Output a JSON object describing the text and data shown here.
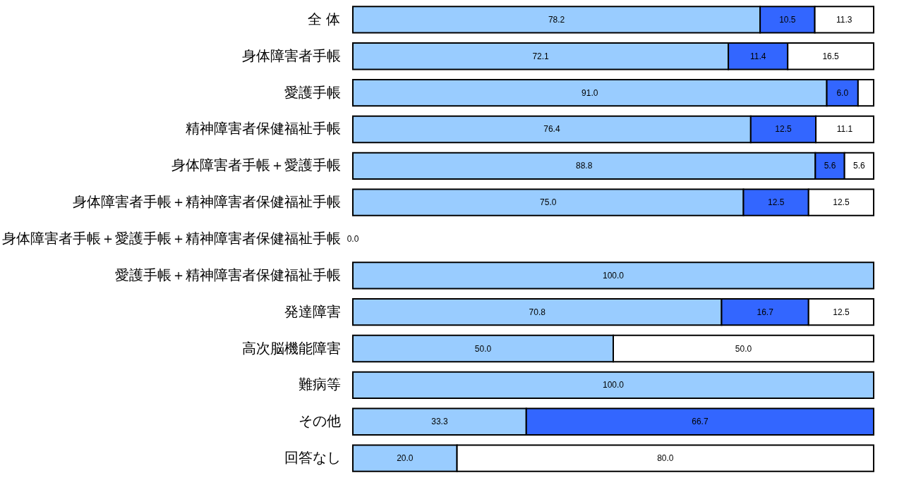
{
  "chart_data": {
    "type": "bar",
    "orientation": "horizontal",
    "stacked": true,
    "xlim": [
      0,
      100
    ],
    "tick_labels": "y",
    "categories": [
      "全 体",
      "身体障害者手帳",
      "愛護手帳",
      "精神障害者保健福祉手帳",
      "身体障害者手帳＋愛護手帳",
      "身体障害者手帳＋精神障害者保健福祉手帳",
      "身体障害者手帳＋愛護手帳＋精神障害者保健福祉手帳",
      "愛護手帳＋精神障害者保健福祉手帳",
      "発達障害",
      "高次脳機能障害",
      "難病等",
      "その他",
      "回答なし"
    ],
    "series": [
      {
        "color": "#99ccff",
        "values": [
          78.2,
          72.1,
          91.0,
          76.4,
          88.8,
          75.0,
          0,
          100.0,
          70.8,
          50.0,
          100.0,
          33.3,
          20.0
        ],
        "value_labels": [
          "78.2",
          "72.1",
          "91.0",
          "76.4",
          "88.8",
          "75.0",
          "0.0",
          "100.0",
          "70.8",
          "50.0",
          "100.0",
          "33.3",
          "20.0"
        ]
      },
      {
        "color": "#3366ff",
        "values": [
          10.5,
          11.4,
          6.0,
          12.5,
          5.6,
          12.5,
          null,
          0,
          16.7,
          0,
          0,
          66.7,
          0
        ],
        "value_labels": [
          "10.5",
          "11.4",
          "6.0",
          "12.5",
          "5.6",
          "12.5",
          null,
          null,
          "16.7",
          null,
          null,
          "66.7",
          null
        ]
      },
      {
        "color": "#ffffff",
        "values": [
          11.3,
          16.5,
          3.0,
          11.1,
          5.6,
          12.5,
          null,
          0,
          12.5,
          50.0,
          0,
          0,
          80.0
        ],
        "value_labels": [
          "11.3",
          "16.5",
          null,
          "11.1",
          "5.6",
          "12.5",
          null,
          null,
          "12.5",
          "50.0",
          null,
          null,
          "80.0"
        ]
      }
    ]
  }
}
